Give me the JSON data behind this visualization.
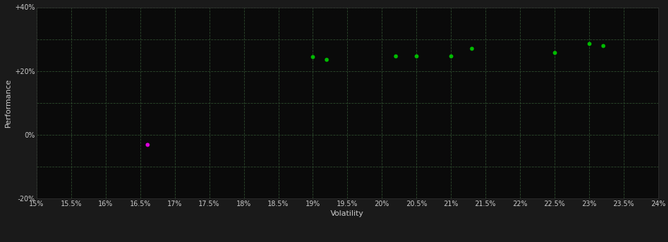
{
  "background_color": "#1a1a1a",
  "plot_bg_color": "#0a0a0a",
  "grid_color": "#2d4a2d",
  "text_color": "#cccccc",
  "xlabel": "Volatility",
  "ylabel": "Performance",
  "xlim": [
    0.15,
    0.24
  ],
  "ylim": [
    -0.2,
    0.4
  ],
  "xticks": [
    0.15,
    0.155,
    0.16,
    0.165,
    0.17,
    0.175,
    0.18,
    0.185,
    0.19,
    0.195,
    0.2,
    0.205,
    0.21,
    0.215,
    0.22,
    0.225,
    0.23,
    0.235,
    0.24
  ],
  "yticks": [
    -0.2,
    -0.1,
    0.0,
    0.1,
    0.2,
    0.3,
    0.4
  ],
  "ytick_labels": [
    "-20%",
    "",
    "0%",
    "",
    "+20%",
    "",
    "+40%"
  ],
  "green_points": [
    [
      0.19,
      0.245
    ],
    [
      0.192,
      0.237
    ],
    [
      0.202,
      0.248
    ],
    [
      0.205,
      0.248
    ],
    [
      0.21,
      0.248
    ],
    [
      0.213,
      0.27
    ],
    [
      0.225,
      0.258
    ],
    [
      0.23,
      0.285
    ],
    [
      0.232,
      0.28
    ]
  ],
  "magenta_points": [
    [
      0.166,
      -0.03
    ]
  ],
  "green_color": "#00bb00",
  "magenta_color": "#dd00dd",
  "marker_size": 18,
  "axis_fontsize": 8,
  "tick_fontsize": 7
}
